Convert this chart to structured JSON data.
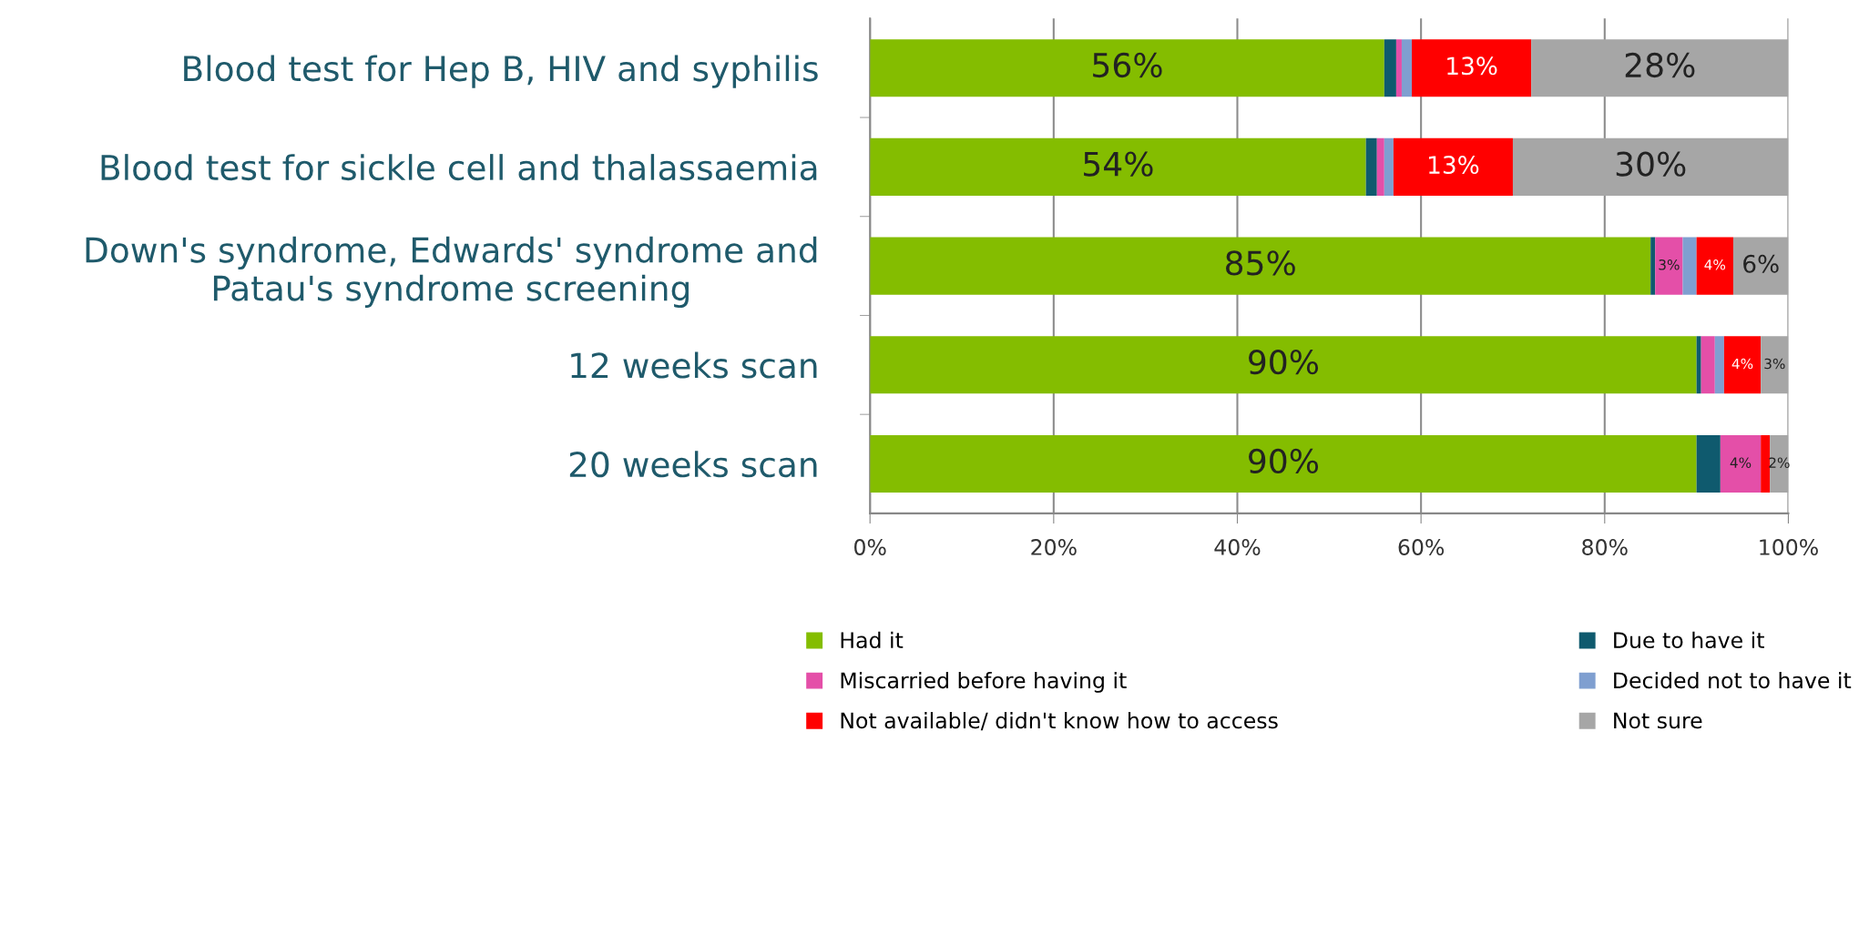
{
  "chart_data": {
    "type": "bar",
    "orientation": "horizontal",
    "stacked": true,
    "categories": [
      "Blood test for Hep B, HIV and syphilis",
      "Blood test for sickle cell and thalassaemia",
      "Down's syndrome, Edwards' syndrome and Patau's syndrome screening",
      "12 weeks scan",
      "20 weeks scan"
    ],
    "series": [
      {
        "name": "Had it",
        "color": "#84bd00",
        "values": [
          56,
          54,
          85,
          90,
          90
        ],
        "value_labels": [
          "56%",
          "54%",
          "85%",
          "90%",
          "90%"
        ]
      },
      {
        "name": "Due to have it",
        "color": "#0f5a6e",
        "values": [
          1.3,
          1.2,
          0.5,
          0.5,
          2.6
        ]
      },
      {
        "name": "Miscarried before having it",
        "color": "#e44fa8",
        "values": [
          0.6,
          0.8,
          3,
          1.5,
          4.4
        ],
        "value_labels": [
          null,
          null,
          "3%",
          null,
          "4%"
        ]
      },
      {
        "name": "Decided not to have it",
        "color": "#7f9fd0",
        "values": [
          1.1,
          1.0,
          1.5,
          1.0,
          0
        ]
      },
      {
        "name": "Not available/ didn't know how to access",
        "color": "#ff0000",
        "values": [
          13,
          13,
          4,
          4,
          1
        ],
        "value_labels": [
          "13%",
          "13%",
          "4%",
          "4%",
          null
        ]
      },
      {
        "name": "Not sure",
        "color": "#a6a6a6",
        "values": [
          28,
          30,
          6,
          3,
          2
        ],
        "value_labels": [
          "28%",
          "30%",
          "6%",
          "3%",
          "2%"
        ]
      }
    ],
    "xlim": [
      0,
      100
    ],
    "xticks": [
      {
        "value": 0,
        "label": "0%"
      },
      {
        "value": 20,
        "label": "20%"
      },
      {
        "value": 40,
        "label": "40%"
      },
      {
        "value": 60,
        "label": "60%"
      },
      {
        "value": 80,
        "label": "80%"
      },
      {
        "value": 100,
        "label": "100%"
      }
    ],
    "grid": "x",
    "legend": "bottom"
  }
}
